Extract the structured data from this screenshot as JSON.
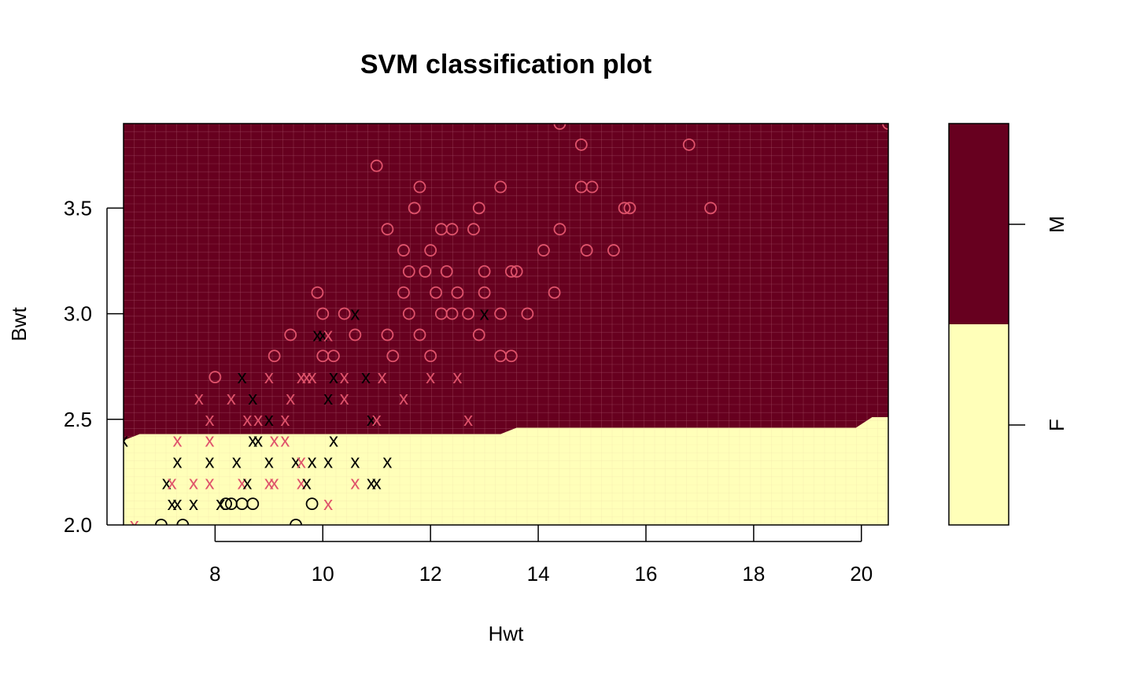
{
  "chart_data": {
    "type": "scatter",
    "title": "SVM classification plot",
    "xlabel": "Hwt",
    "ylabel": "Bwt",
    "xlim": [
      6.3,
      20.5
    ],
    "ylim": [
      2.0,
      3.9
    ],
    "xticks": [
      "8",
      "10",
      "12",
      "14",
      "16",
      "18",
      "20"
    ],
    "yticks": [
      "2.0",
      "2.5",
      "3.0",
      "3.5"
    ],
    "grid": false,
    "classes": [
      "F",
      "M"
    ],
    "colors": {
      "region_M": "#67001f",
      "region_F": "#ffffb9",
      "class_M_points": "#df536b",
      "class_F_points": "#000000",
      "grid_M": "#a5536a",
      "grid_F": "#f2f2b0"
    },
    "decision_boundary": {
      "x": [
        6.3,
        6.6,
        13.3,
        13.6,
        19.9,
        20.2,
        20.5
      ],
      "y": [
        2.4,
        2.43,
        2.43,
        2.46,
        2.46,
        2.51,
        2.51
      ]
    },
    "point_symbols": {
      "support_vector": "x",
      "other": "o"
    },
    "points": [
      {
        "x": 6.3,
        "y": 2.4,
        "s": "x",
        "c": "F"
      },
      {
        "x": 6.5,
        "y": 2.0,
        "s": "x",
        "c": "M"
      },
      {
        "x": 7.0,
        "y": 2.0,
        "s": "o",
        "c": "F"
      },
      {
        "x": 7.4,
        "y": 2.0,
        "s": "o",
        "c": "F"
      },
      {
        "x": 9.5,
        "y": 2.0,
        "s": "o",
        "c": "F"
      },
      {
        "x": 7.2,
        "y": 2.1,
        "s": "x",
        "c": "F"
      },
      {
        "x": 7.3,
        "y": 2.1,
        "s": "x",
        "c": "F"
      },
      {
        "x": 7.6,
        "y": 2.1,
        "s": "x",
        "c": "F"
      },
      {
        "x": 8.1,
        "y": 2.1,
        "s": "x",
        "c": "F"
      },
      {
        "x": 8.2,
        "y": 2.1,
        "s": "o",
        "c": "F"
      },
      {
        "x": 8.3,
        "y": 2.1,
        "s": "o",
        "c": "F"
      },
      {
        "x": 8.5,
        "y": 2.1,
        "s": "o",
        "c": "F"
      },
      {
        "x": 8.7,
        "y": 2.1,
        "s": "o",
        "c": "F"
      },
      {
        "x": 9.8,
        "y": 2.1,
        "s": "o",
        "c": "F"
      },
      {
        "x": 10.1,
        "y": 2.1,
        "s": "x",
        "c": "M"
      },
      {
        "x": 7.1,
        "y": 2.2,
        "s": "x",
        "c": "F"
      },
      {
        "x": 7.2,
        "y": 2.2,
        "s": "x",
        "c": "M"
      },
      {
        "x": 7.6,
        "y": 2.2,
        "s": "x",
        "c": "M"
      },
      {
        "x": 7.9,
        "y": 2.2,
        "s": "x",
        "c": "M"
      },
      {
        "x": 8.5,
        "y": 2.2,
        "s": "x",
        "c": "M"
      },
      {
        "x": 8.6,
        "y": 2.2,
        "s": "x",
        "c": "F"
      },
      {
        "x": 9.0,
        "y": 2.2,
        "s": "x",
        "c": "M"
      },
      {
        "x": 9.1,
        "y": 2.2,
        "s": "x",
        "c": "M"
      },
      {
        "x": 9.6,
        "y": 2.2,
        "s": "x",
        "c": "M"
      },
      {
        "x": 9.7,
        "y": 2.2,
        "s": "x",
        "c": "F"
      },
      {
        "x": 10.6,
        "y": 2.2,
        "s": "x",
        "c": "M"
      },
      {
        "x": 10.9,
        "y": 2.2,
        "s": "x",
        "c": "F"
      },
      {
        "x": 11.0,
        "y": 2.2,
        "s": "x",
        "c": "F"
      },
      {
        "x": 7.3,
        "y": 2.3,
        "s": "x",
        "c": "F"
      },
      {
        "x": 7.9,
        "y": 2.3,
        "s": "x",
        "c": "F"
      },
      {
        "x": 8.4,
        "y": 2.3,
        "s": "x",
        "c": "F"
      },
      {
        "x": 9.0,
        "y": 2.3,
        "s": "x",
        "c": "F"
      },
      {
        "x": 9.5,
        "y": 2.3,
        "s": "x",
        "c": "F"
      },
      {
        "x": 9.6,
        "y": 2.3,
        "s": "x",
        "c": "M"
      },
      {
        "x": 9.8,
        "y": 2.3,
        "s": "x",
        "c": "F"
      },
      {
        "x": 10.1,
        "y": 2.3,
        "s": "x",
        "c": "F"
      },
      {
        "x": 10.6,
        "y": 2.3,
        "s": "x",
        "c": "F"
      },
      {
        "x": 11.2,
        "y": 2.3,
        "s": "x",
        "c": "F"
      },
      {
        "x": 7.3,
        "y": 2.4,
        "s": "x",
        "c": "M"
      },
      {
        "x": 7.9,
        "y": 2.4,
        "s": "x",
        "c": "M"
      },
      {
        "x": 8.7,
        "y": 2.4,
        "s": "x",
        "c": "F"
      },
      {
        "x": 8.8,
        "y": 2.4,
        "s": "x",
        "c": "F"
      },
      {
        "x": 9.1,
        "y": 2.4,
        "s": "x",
        "c": "M"
      },
      {
        "x": 9.3,
        "y": 2.4,
        "s": "x",
        "c": "M"
      },
      {
        "x": 10.2,
        "y": 2.4,
        "s": "x",
        "c": "F"
      },
      {
        "x": 7.9,
        "y": 2.5,
        "s": "x",
        "c": "M"
      },
      {
        "x": 8.6,
        "y": 2.5,
        "s": "x",
        "c": "M"
      },
      {
        "x": 8.8,
        "y": 2.5,
        "s": "x",
        "c": "M"
      },
      {
        "x": 9.0,
        "y": 2.5,
        "s": "x",
        "c": "F"
      },
      {
        "x": 9.3,
        "y": 2.5,
        "s": "x",
        "c": "M"
      },
      {
        "x": 10.9,
        "y": 2.5,
        "s": "x",
        "c": "F"
      },
      {
        "x": 11.0,
        "y": 2.5,
        "s": "x",
        "c": "M"
      },
      {
        "x": 12.7,
        "y": 2.5,
        "s": "x",
        "c": "M"
      },
      {
        "x": 7.7,
        "y": 2.6,
        "s": "x",
        "c": "M"
      },
      {
        "x": 8.3,
        "y": 2.6,
        "s": "x",
        "c": "M"
      },
      {
        "x": 8.7,
        "y": 2.6,
        "s": "x",
        "c": "F"
      },
      {
        "x": 9.4,
        "y": 2.6,
        "s": "x",
        "c": "M"
      },
      {
        "x": 10.1,
        "y": 2.6,
        "s": "x",
        "c": "F"
      },
      {
        "x": 10.4,
        "y": 2.6,
        "s": "x",
        "c": "M"
      },
      {
        "x": 11.5,
        "y": 2.6,
        "s": "x",
        "c": "M"
      },
      {
        "x": 8.0,
        "y": 2.7,
        "s": "o",
        "c": "M"
      },
      {
        "x": 8.5,
        "y": 2.7,
        "s": "x",
        "c": "F"
      },
      {
        "x": 9.0,
        "y": 2.7,
        "s": "x",
        "c": "M"
      },
      {
        "x": 9.6,
        "y": 2.7,
        "s": "x",
        "c": "M"
      },
      {
        "x": 9.7,
        "y": 2.7,
        "s": "x",
        "c": "M"
      },
      {
        "x": 9.8,
        "y": 2.7,
        "s": "x",
        "c": "M"
      },
      {
        "x": 10.2,
        "y": 2.7,
        "s": "x",
        "c": "F"
      },
      {
        "x": 10.4,
        "y": 2.7,
        "s": "x",
        "c": "M"
      },
      {
        "x": 10.8,
        "y": 2.7,
        "s": "x",
        "c": "F"
      },
      {
        "x": 11.1,
        "y": 2.7,
        "s": "x",
        "c": "M"
      },
      {
        "x": 12.0,
        "y": 2.7,
        "s": "x",
        "c": "M"
      },
      {
        "x": 12.5,
        "y": 2.7,
        "s": "x",
        "c": "M"
      },
      {
        "x": 9.1,
        "y": 2.8,
        "s": "o",
        "c": "M"
      },
      {
        "x": 10.0,
        "y": 2.8,
        "s": "o",
        "c": "M"
      },
      {
        "x": 10.2,
        "y": 2.8,
        "s": "o",
        "c": "M"
      },
      {
        "x": 11.3,
        "y": 2.8,
        "s": "o",
        "c": "M"
      },
      {
        "x": 12.0,
        "y": 2.8,
        "s": "o",
        "c": "M"
      },
      {
        "x": 13.3,
        "y": 2.8,
        "s": "o",
        "c": "M"
      },
      {
        "x": 13.5,
        "y": 2.8,
        "s": "o",
        "c": "M"
      },
      {
        "x": 9.4,
        "y": 2.9,
        "s": "o",
        "c": "M"
      },
      {
        "x": 9.9,
        "y": 2.9,
        "s": "x",
        "c": "F"
      },
      {
        "x": 10.0,
        "y": 2.9,
        "s": "x",
        "c": "F"
      },
      {
        "x": 10.1,
        "y": 2.9,
        "s": "x",
        "c": "M"
      },
      {
        "x": 10.6,
        "y": 2.9,
        "s": "o",
        "c": "M"
      },
      {
        "x": 11.2,
        "y": 2.9,
        "s": "o",
        "c": "M"
      },
      {
        "x": 11.8,
        "y": 2.9,
        "s": "o",
        "c": "M"
      },
      {
        "x": 12.9,
        "y": 2.9,
        "s": "o",
        "c": "M"
      },
      {
        "x": 10.0,
        "y": 3.0,
        "s": "o",
        "c": "M"
      },
      {
        "x": 10.4,
        "y": 3.0,
        "s": "o",
        "c": "M"
      },
      {
        "x": 10.6,
        "y": 3.0,
        "s": "x",
        "c": "F"
      },
      {
        "x": 11.6,
        "y": 3.0,
        "s": "o",
        "c": "M"
      },
      {
        "x": 12.2,
        "y": 3.0,
        "s": "o",
        "c": "M"
      },
      {
        "x": 12.4,
        "y": 3.0,
        "s": "o",
        "c": "M"
      },
      {
        "x": 12.7,
        "y": 3.0,
        "s": "o",
        "c": "M"
      },
      {
        "x": 13.0,
        "y": 3.0,
        "s": "x",
        "c": "F"
      },
      {
        "x": 13.3,
        "y": 3.0,
        "s": "o",
        "c": "M"
      },
      {
        "x": 13.8,
        "y": 3.0,
        "s": "o",
        "c": "M"
      },
      {
        "x": 9.9,
        "y": 3.1,
        "s": "o",
        "c": "M"
      },
      {
        "x": 11.5,
        "y": 3.1,
        "s": "o",
        "c": "M"
      },
      {
        "x": 12.1,
        "y": 3.1,
        "s": "o",
        "c": "M"
      },
      {
        "x": 12.5,
        "y": 3.1,
        "s": "o",
        "c": "M"
      },
      {
        "x": 13.0,
        "y": 3.1,
        "s": "o",
        "c": "M"
      },
      {
        "x": 14.3,
        "y": 3.1,
        "s": "o",
        "c": "M"
      },
      {
        "x": 11.6,
        "y": 3.2,
        "s": "o",
        "c": "M"
      },
      {
        "x": 11.9,
        "y": 3.2,
        "s": "o",
        "c": "M"
      },
      {
        "x": 12.3,
        "y": 3.2,
        "s": "o",
        "c": "M"
      },
      {
        "x": 13.0,
        "y": 3.2,
        "s": "o",
        "c": "M"
      },
      {
        "x": 13.5,
        "y": 3.2,
        "s": "o",
        "c": "M"
      },
      {
        "x": 13.6,
        "y": 3.2,
        "s": "o",
        "c": "M"
      },
      {
        "x": 11.5,
        "y": 3.3,
        "s": "o",
        "c": "M"
      },
      {
        "x": 12.0,
        "y": 3.3,
        "s": "o",
        "c": "M"
      },
      {
        "x": 14.1,
        "y": 3.3,
        "s": "o",
        "c": "M"
      },
      {
        "x": 14.9,
        "y": 3.3,
        "s": "o",
        "c": "M"
      },
      {
        "x": 15.4,
        "y": 3.3,
        "s": "o",
        "c": "M"
      },
      {
        "x": 11.2,
        "y": 3.4,
        "s": "o",
        "c": "M"
      },
      {
        "x": 12.2,
        "y": 3.4,
        "s": "o",
        "c": "M"
      },
      {
        "x": 12.4,
        "y": 3.4,
        "s": "o",
        "c": "M"
      },
      {
        "x": 12.8,
        "y": 3.4,
        "s": "o",
        "c": "M"
      },
      {
        "x": 14.4,
        "y": 3.4,
        "s": "o",
        "c": "M"
      },
      {
        "x": 11.7,
        "y": 3.5,
        "s": "o",
        "c": "M"
      },
      {
        "x": 12.9,
        "y": 3.5,
        "s": "o",
        "c": "M"
      },
      {
        "x": 15.6,
        "y": 3.5,
        "s": "o",
        "c": "M"
      },
      {
        "x": 15.7,
        "y": 3.5,
        "s": "o",
        "c": "M"
      },
      {
        "x": 17.2,
        "y": 3.5,
        "s": "o",
        "c": "M"
      },
      {
        "x": 11.8,
        "y": 3.6,
        "s": "o",
        "c": "M"
      },
      {
        "x": 13.3,
        "y": 3.6,
        "s": "o",
        "c": "M"
      },
      {
        "x": 14.8,
        "y": 3.6,
        "s": "o",
        "c": "M"
      },
      {
        "x": 15.0,
        "y": 3.6,
        "s": "o",
        "c": "M"
      },
      {
        "x": 11.0,
        "y": 3.7,
        "s": "o",
        "c": "M"
      },
      {
        "x": 14.8,
        "y": 3.8,
        "s": "o",
        "c": "M"
      },
      {
        "x": 16.8,
        "y": 3.8,
        "s": "o",
        "c": "M"
      },
      {
        "x": 14.4,
        "y": 3.9,
        "s": "o",
        "c": "M"
      },
      {
        "x": 20.5,
        "y": 3.9,
        "s": "o",
        "c": "M"
      }
    ]
  }
}
